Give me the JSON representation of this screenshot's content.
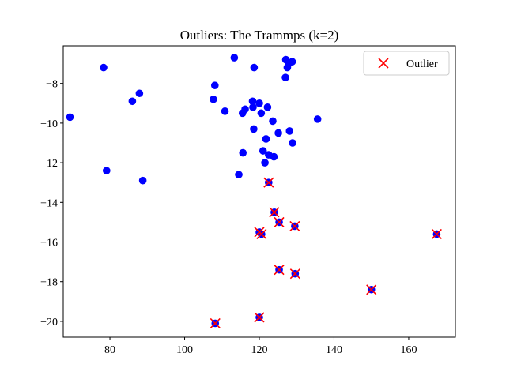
{
  "chart_data": {
    "type": "scatter",
    "title": "Outliers: The Trammps (k=2)",
    "xlabel": "",
    "ylabel": "",
    "xlim": [
      67.5,
      172.5
    ],
    "ylim": [
      -20.8,
      -6.1
    ],
    "xticks": [
      80,
      100,
      120,
      140,
      160
    ],
    "yticks": [
      -20,
      -18,
      -16,
      -14,
      -12,
      -10,
      -8
    ],
    "grid": false,
    "legend_position": "top-right",
    "colors": {
      "points": "#0000ff",
      "outlier": "#ff0000"
    },
    "series": [
      {
        "marker": "circle",
        "points": [
          [
            69.3,
            -9.7
          ],
          [
            78.3,
            -7.2
          ],
          [
            79.1,
            -12.4
          ],
          [
            86.0,
            -8.9
          ],
          [
            87.9,
            -8.5
          ],
          [
            88.8,
            -12.9
          ],
          [
            107.7,
            -8.8
          ],
          [
            108.1,
            -8.1
          ],
          [
            110.8,
            -9.4
          ],
          [
            113.3,
            -6.7
          ],
          [
            114.5,
            -12.6
          ],
          [
            115.5,
            -9.5
          ],
          [
            115.6,
            -11.5
          ],
          [
            116.2,
            -9.3
          ],
          [
            118.2,
            -8.9
          ],
          [
            118.3,
            -9.2
          ],
          [
            118.5,
            -10.3
          ],
          [
            118.6,
            -7.2
          ],
          [
            120.0,
            -9.0
          ],
          [
            120.5,
            -9.5
          ],
          [
            121.0,
            -11.4
          ],
          [
            121.5,
            -12.0
          ],
          [
            121.8,
            -10.8
          ],
          [
            122.2,
            -9.2
          ],
          [
            122.5,
            -11.6
          ],
          [
            123.6,
            -9.9
          ],
          [
            123.9,
            -11.7
          ],
          [
            125.1,
            -10.5
          ],
          [
            127.0,
            -7.7
          ],
          [
            127.1,
            -6.8
          ],
          [
            127.5,
            -7.2
          ],
          [
            127.9,
            -7.0
          ],
          [
            128.1,
            -10.4
          ],
          [
            128.8,
            -6.9
          ],
          [
            128.9,
            -11.0
          ],
          [
            135.6,
            -9.8
          ],
          [
            108.2,
            -20.1
          ],
          [
            120.0,
            -19.8
          ],
          [
            120.0,
            -15.5
          ],
          [
            120.6,
            -15.6
          ],
          [
            122.5,
            -13.0
          ],
          [
            124.0,
            -14.5
          ],
          [
            125.3,
            -15.0
          ],
          [
            125.3,
            -17.4
          ],
          [
            129.5,
            -15.2
          ],
          [
            129.6,
            -17.6
          ],
          [
            150.0,
            -18.4
          ],
          [
            167.5,
            -15.6
          ]
        ]
      },
      {
        "name": "Outlier",
        "marker": "x",
        "points": [
          [
            108.2,
            -20.1
          ],
          [
            120.0,
            -19.8
          ],
          [
            120.0,
            -15.5
          ],
          [
            120.6,
            -15.6
          ],
          [
            122.5,
            -13.0
          ],
          [
            124.0,
            -14.5
          ],
          [
            125.3,
            -15.0
          ],
          [
            125.3,
            -17.4
          ],
          [
            129.5,
            -15.2
          ],
          [
            129.6,
            -17.6
          ],
          [
            150.0,
            -18.4
          ],
          [
            167.5,
            -15.6
          ]
        ]
      }
    ]
  }
}
